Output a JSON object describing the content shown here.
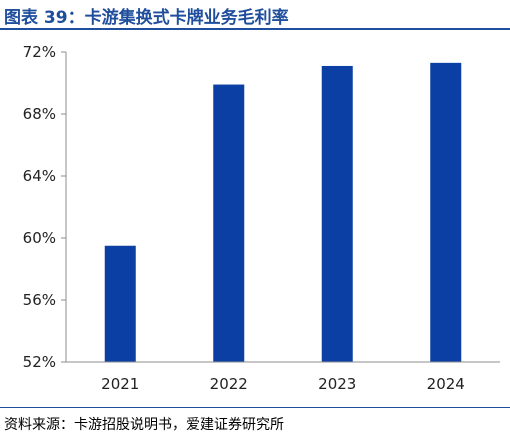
{
  "header": {
    "title": "图表 39：卡游集换式卡牌业务毛利率"
  },
  "footer": {
    "source": "资料来源：卡游招股说明书，爱建证券研究所"
  },
  "chart_data": {
    "type": "bar",
    "categories": [
      "2021",
      "2022",
      "2023",
      "2024"
    ],
    "values": [
      59.5,
      69.9,
      71.1,
      71.3
    ],
    "ylim": [
      52,
      72
    ],
    "yticks": [
      52,
      56,
      60,
      64,
      68,
      72
    ],
    "ytick_labels": [
      "52%",
      "56%",
      "60%",
      "64%",
      "68%",
      "72%"
    ],
    "xlabel": "",
    "ylabel": "",
    "grid": false,
    "bar_color": "#0b3fa3"
  }
}
